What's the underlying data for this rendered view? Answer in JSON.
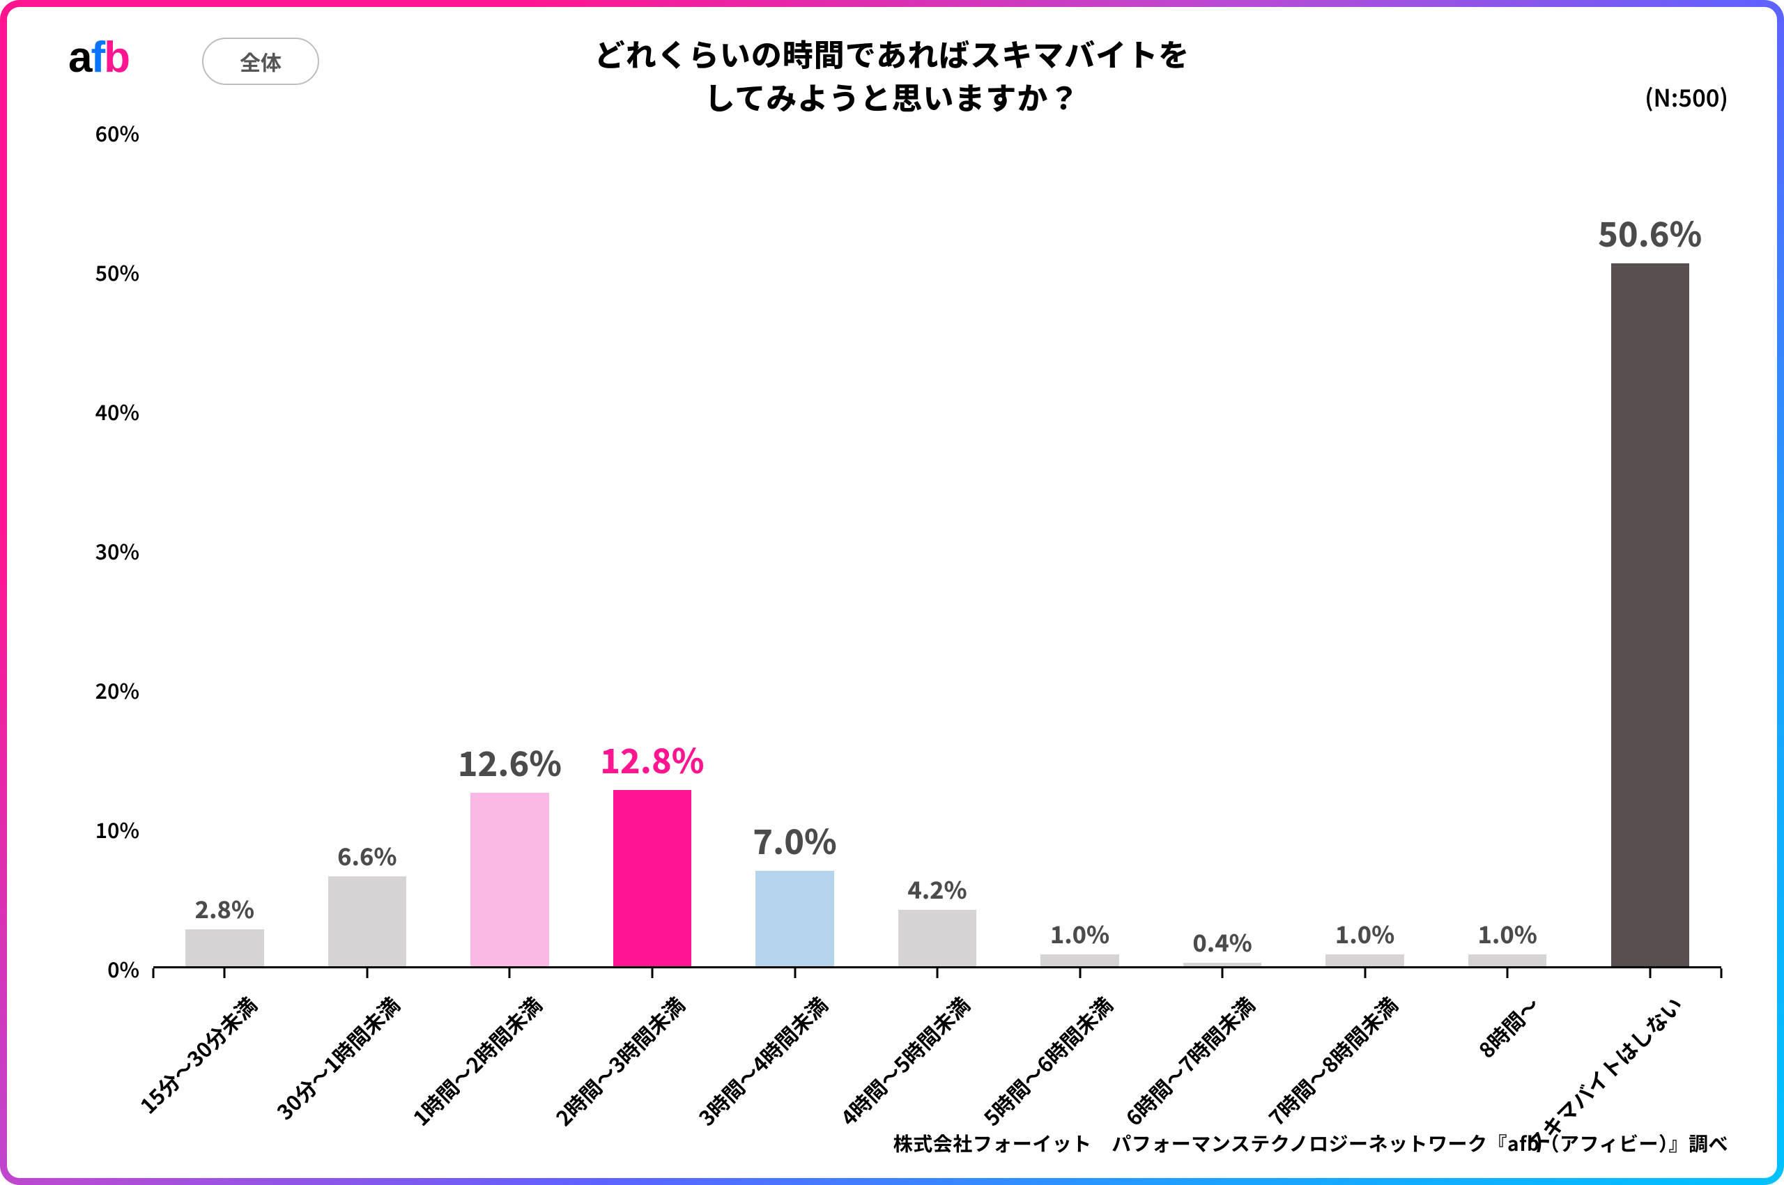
{
  "logo": {
    "a": "a",
    "f": "f",
    "b": "b"
  },
  "chip_label": "全体",
  "title_line1": "どれくらいの時間であればスキマバイトを",
  "title_line2": "してみようと思いますか？",
  "n_note": "(N:500)",
  "credit": "株式会社フォーイット　パフォーマンステクノロジーネットワーク『afb（アフィビー）』調べ",
  "chart": {
    "type": "bar",
    "ylim": [
      0,
      60
    ],
    "ytick_step": 10,
    "ytick_suffix": "%",
    "bar_width_ratio": 0.55,
    "value_suffix": "%",
    "value_decimals": 1,
    "background_color": "#ffffff",
    "axis_color": "#000000",
    "default_bar_color": "#d5d3d4",
    "default_label_color": "#4b4b4b",
    "value_font_size_default": 34,
    "value_font_size_emph": 48,
    "categories": [
      "15分～30分未満",
      "30分～1時間未満",
      "1時間～2時間未満",
      "2時間～3時間未満",
      "3時間～4時間未満",
      "4時間～5時間未満",
      "5時間～6時間未満",
      "6時間～7時間未満",
      "7時間～8時間未満",
      "8時間～",
      "スキマバイトはしない"
    ],
    "values": [
      2.8,
      6.6,
      12.6,
      12.8,
      7.0,
      4.2,
      1.0,
      0.4,
      1.0,
      1.0,
      50.6
    ],
    "bar_colors": [
      "#d5d3d4",
      "#d5d3d4",
      "#fab9e4",
      "#ff158f",
      "#b4d3ec",
      "#d5d3d4",
      "#d5d3d4",
      "#d5d3d4",
      "#d5d3d4",
      "#d5d3d4",
      "#574f50"
    ],
    "value_label_colors": [
      "#4b4b4b",
      "#4b4b4b",
      "#4b4b4b",
      "#ff158f",
      "#4b4b4b",
      "#4b4b4b",
      "#4b4b4b",
      "#4b4b4b",
      "#4b4b4b",
      "#4b4b4b",
      "#4b4b4b"
    ],
    "value_label_emph": [
      false,
      false,
      true,
      true,
      true,
      false,
      false,
      false,
      false,
      false,
      true
    ]
  }
}
